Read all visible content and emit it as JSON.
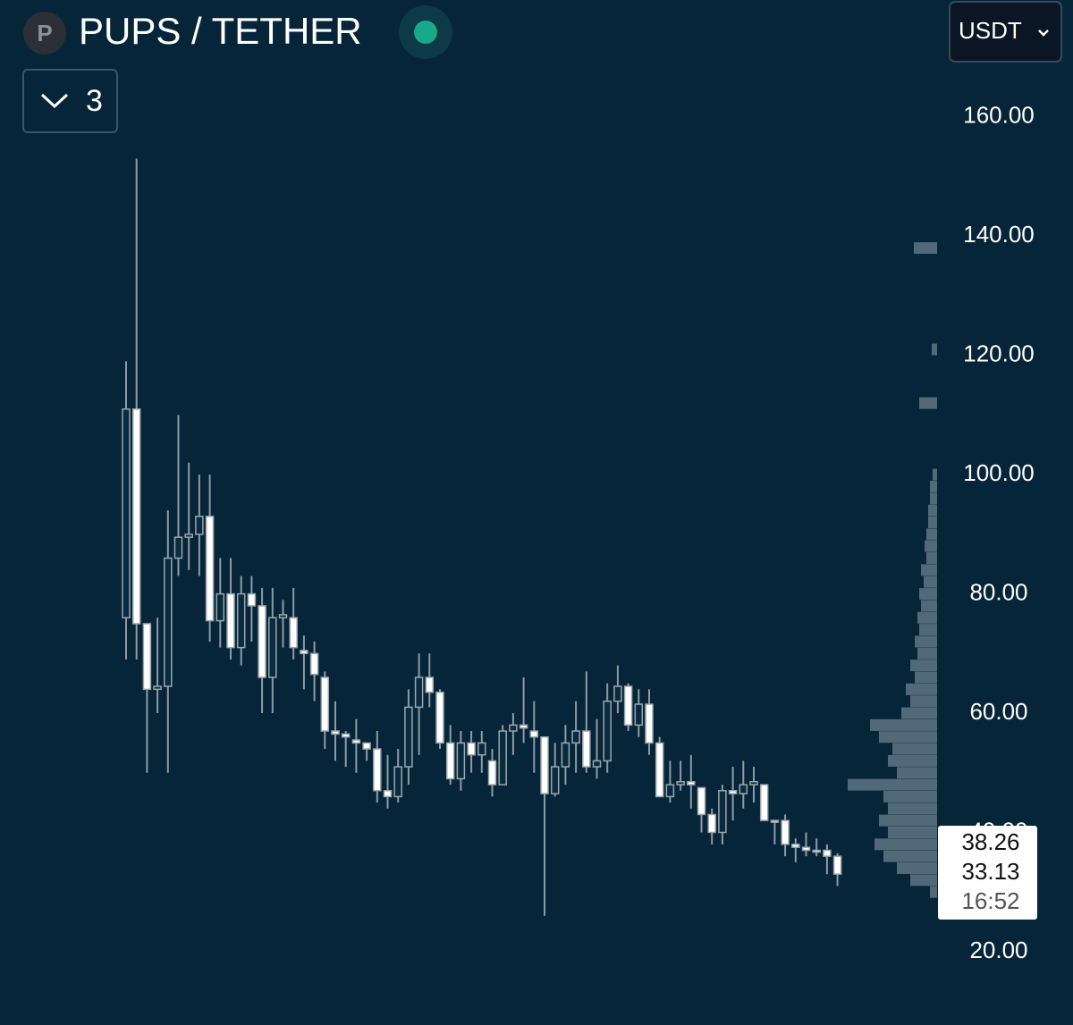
{
  "header": {
    "icon_letter": "P",
    "title": "PUPS / TETHER",
    "currency": "USDT",
    "indicator_count": "3"
  },
  "chart_data": {
    "type": "candlestick",
    "open": [
      76,
      111,
      75,
      64,
      64.5,
      86,
      89.5,
      90,
      93,
      75.5,
      80,
      71,
      80,
      78,
      66,
      76,
      76,
      70.5,
      70,
      66,
      57,
      56.5,
      55.5,
      55,
      54,
      47,
      46,
      51,
      61,
      66,
      63.5,
      55,
      49,
      55,
      53,
      52,
      48,
      57,
      58,
      57,
      56,
      46.5,
      51,
      55,
      57,
      51,
      52,
      62,
      64.5,
      58,
      61.5,
      55,
      46,
      48,
      48.5,
      47.5,
      43,
      40,
      47,
      46.5,
      48,
      48,
      42,
      42,
      38,
      37.5,
      37,
      37,
      36
    ],
    "high": [
      119,
      153,
      75,
      76,
      94,
      110,
      102,
      100,
      100,
      86,
      86,
      83,
      83,
      81,
      81,
      79,
      81,
      73,
      72,
      67,
      62,
      57,
      59,
      55,
      57,
      53,
      54,
      64,
      70,
      70,
      64,
      58,
      57,
      57,
      57,
      54,
      58,
      60,
      66,
      62,
      56,
      55,
      58,
      62,
      67,
      59,
      65,
      68,
      65,
      64,
      64,
      56,
      52,
      52,
      53,
      47.5,
      44,
      48,
      51,
      52,
      51,
      48,
      42,
      43,
      39,
      40,
      39,
      38,
      36.5
    ],
    "low": [
      69,
      69,
      50,
      60,
      50,
      83,
      84,
      83,
      72,
      71,
      69,
      68,
      72,
      60,
      60,
      71,
      69,
      64,
      62,
      54,
      52,
      51,
      50,
      52,
      45,
      44,
      45,
      48,
      53,
      61,
      54,
      48,
      47,
      50,
      50,
      46,
      48,
      53,
      55,
      50,
      26,
      46,
      48,
      50,
      50,
      49,
      50,
      60,
      57,
      56,
      53,
      46,
      45,
      47,
      44,
      40,
      38,
      38,
      42,
      44,
      45,
      42,
      38,
      36,
      35,
      36,
      36,
      33,
      31
    ],
    "close": [
      111,
      75,
      64,
      64.5,
      86,
      89.5,
      90,
      93,
      75.5,
      80,
      71,
      80,
      78,
      66,
      76,
      76.5,
      71,
      70,
      66.5,
      57,
      56.5,
      56,
      55,
      54,
      47,
      46,
      51,
      61,
      66,
      63.5,
      55,
      49,
      55,
      53,
      55,
      48,
      57,
      58,
      57.5,
      56,
      46.5,
      51,
      55,
      57,
      51,
      52,
      62,
      64.5,
      58,
      61.5,
      55,
      46,
      48,
      48.5,
      48,
      43,
      40,
      47,
      46.5,
      48,
      48.5,
      42,
      42,
      38,
      37.5,
      37,
      37,
      36,
      33
    ],
    "up_color": "#0a2b3f",
    "down_color": "#ffffff",
    "ylim": [
      7.7,
      179.6
    ],
    "yticks": [
      {
        "value": 20,
        "label": "20.00"
      },
      {
        "value": 40,
        "label": "40.00"
      },
      {
        "value": 60,
        "label": "60.00"
      },
      {
        "value": 80,
        "label": "80.00"
      },
      {
        "value": 100,
        "label": "100.00"
      },
      {
        "value": 120,
        "label": "120.00"
      },
      {
        "value": 140,
        "label": "140.00"
      },
      {
        "value": 160,
        "label": "160.00"
      }
    ],
    "grid": false,
    "volume_profile": {
      "color": "#5f7584",
      "prices": [
        30,
        32,
        34,
        36,
        38,
        40,
        42,
        44,
        46,
        48,
        50,
        52,
        54,
        56,
        58,
        60,
        62,
        64,
        66,
        68,
        70,
        72,
        74,
        76,
        78,
        80,
        82,
        84,
        86,
        88,
        90,
        92,
        94,
        96,
        98,
        100,
        112,
        121,
        138
      ],
      "values": [
        8,
        30,
        45,
        60,
        70,
        55,
        65,
        55,
        60,
        100,
        45,
        55,
        50,
        65,
        75,
        40,
        30,
        35,
        25,
        30,
        22,
        25,
        20,
        22,
        18,
        20,
        15,
        18,
        12,
        14,
        12,
        10,
        10,
        8,
        8,
        5,
        20,
        6,
        26
      ]
    },
    "price_labels": [
      38.26,
      33.13,
      "16:52"
    ]
  }
}
